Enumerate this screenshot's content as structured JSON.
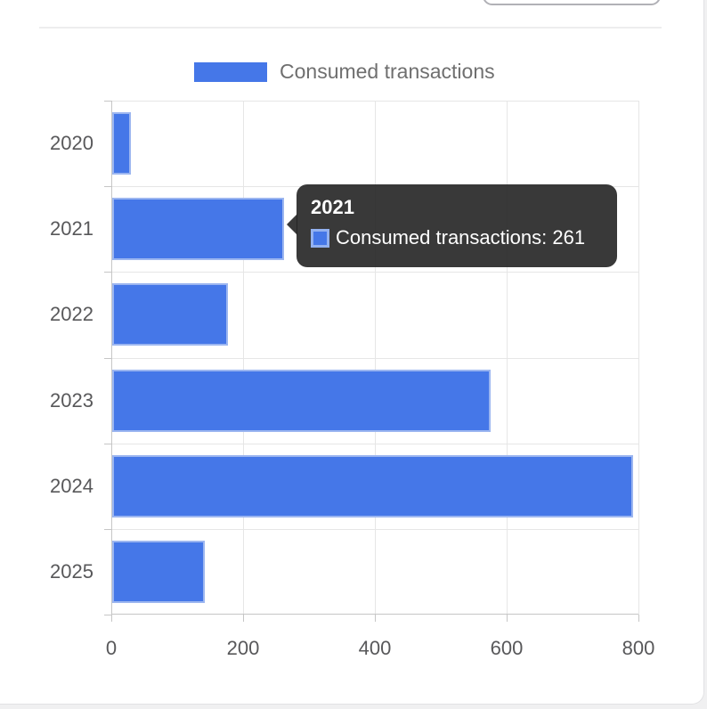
{
  "legend": {
    "label": "Consumed transactions"
  },
  "tooltip": {
    "title": "2021",
    "series": "Consumed transactions",
    "value": 261,
    "text": "Consumed transactions: 261",
    "background": "rgba(36,36,36,0.9)",
    "marker_fill": "#4577e8",
    "marker_border": "#93b1f0"
  },
  "chart_data": {
    "type": "bar",
    "orientation": "horizontal",
    "title": "",
    "categories": [
      "2020",
      "2021",
      "2022",
      "2023",
      "2024",
      "2025"
    ],
    "series": [
      {
        "name": "Consumed transactions",
        "values": [
          28,
          261,
          175,
          574,
          790,
          141
        ]
      }
    ],
    "x_ticks": [
      0,
      200,
      400,
      600,
      800
    ],
    "xlim": [
      0,
      800
    ],
    "grid": true,
    "legend_position": "top",
    "colors": {
      "bar": "#4577e8",
      "bar_border": "#9cb6f0",
      "grid": "#e6e6e6",
      "axis": "#c6c6c6",
      "tick_label": "#58585a",
      "legend_label": "#6f6f6f"
    }
  }
}
